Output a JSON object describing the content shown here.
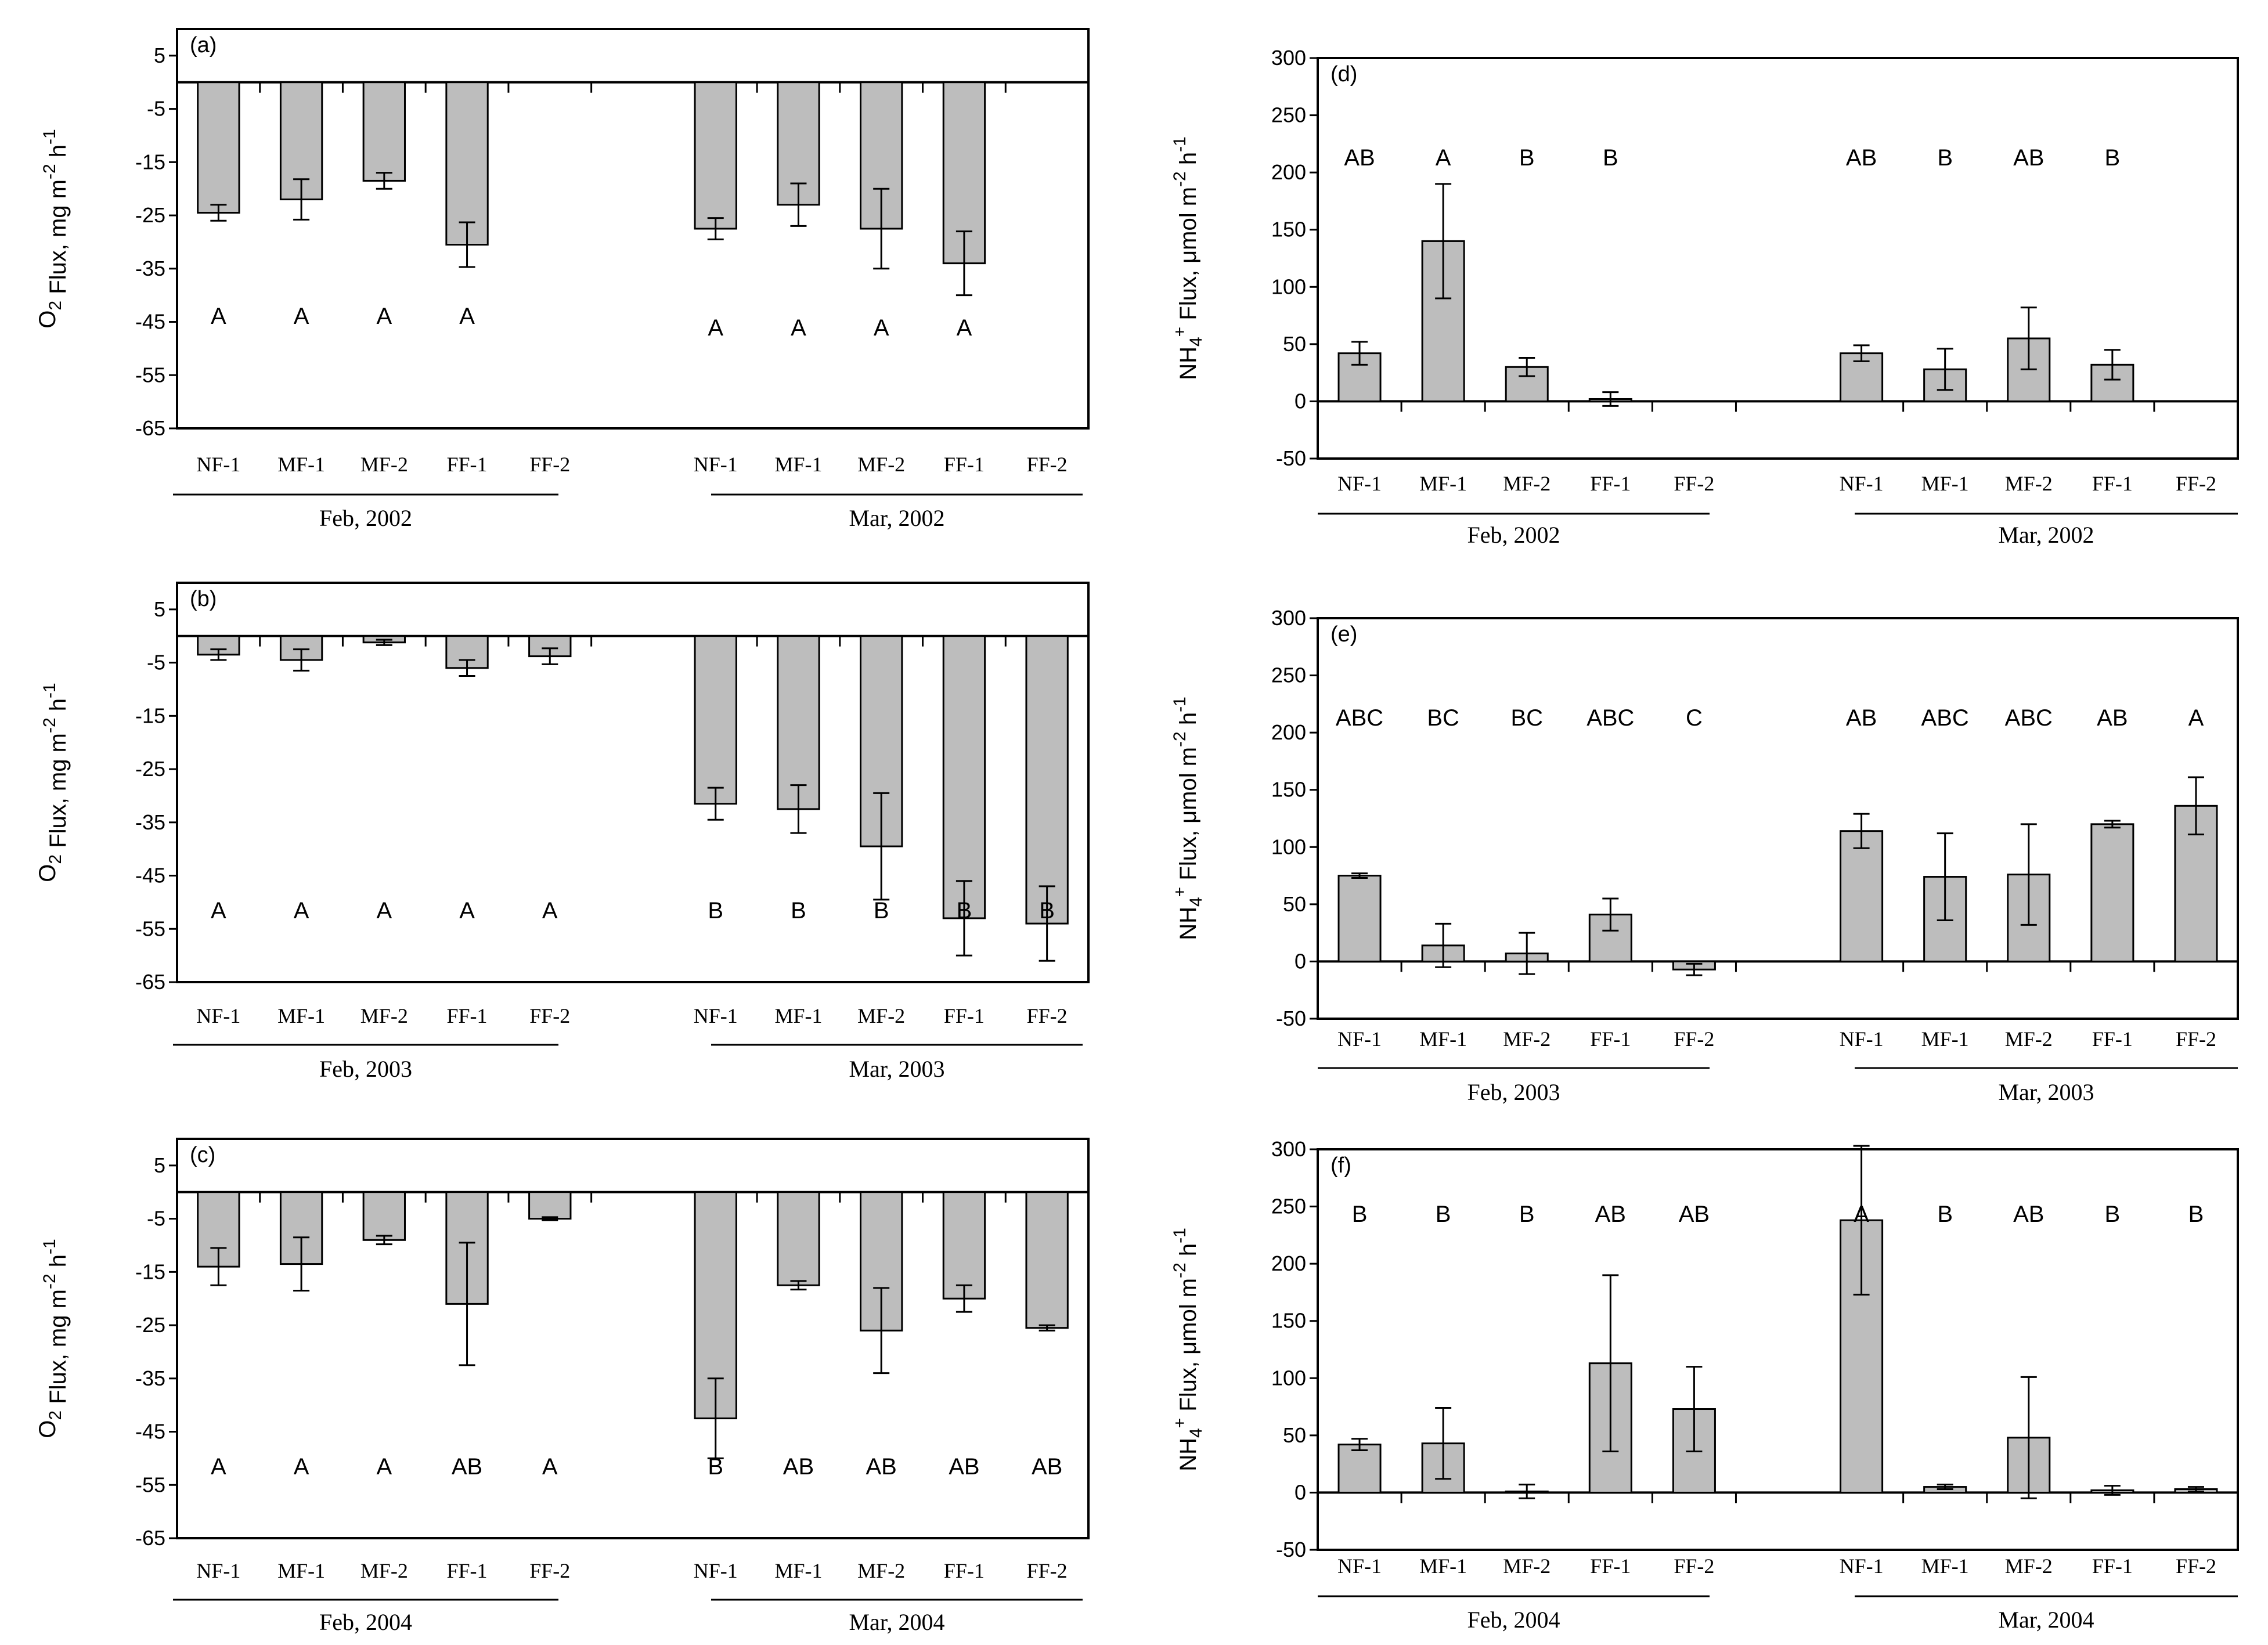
{
  "chart_data": [
    {
      "panel": "(a)",
      "type": "bar",
      "ylabel": {
        "base": "O",
        "sub": "2",
        "rest": " Flux, mg m",
        "sup1": "-2",
        "mid": " h",
        "sup2": "-1"
      },
      "ylim": [
        -65,
        10
      ],
      "yticks": [
        5,
        -5,
        -15,
        -25,
        -35,
        -45,
        -55,
        -65
      ],
      "groups": [
        {
          "label": "Feb, 2002",
          "categories": [
            "NF-1",
            "MF-1",
            "MF-2",
            "FF-1",
            "FF-2"
          ],
          "values": [
            -24.5,
            -22,
            -18.5,
            -30.5,
            null
          ],
          "errors": [
            1.5,
            3.8,
            1.5,
            4.2,
            null
          ],
          "letters": [
            "A",
            "A",
            "A",
            "A",
            ""
          ]
        },
        {
          "label": "Mar, 2002",
          "categories": [
            "NF-1",
            "MF-1",
            "MF-2",
            "FF-1",
            "FF-2"
          ],
          "values": [
            -27.5,
            -23,
            -27.5,
            -34,
            null
          ],
          "errors": [
            2,
            4,
            7.5,
            6,
            null
          ],
          "letters": [
            "A",
            "A",
            "A",
            "A",
            ""
          ]
        }
      ]
    },
    {
      "panel": "(b)",
      "type": "bar",
      "ylabel": {
        "base": "O",
        "sub": "2",
        "rest": " Flux, mg m",
        "sup1": "-2",
        "mid": " h",
        "sup2": "-1"
      },
      "ylim": [
        -65,
        10
      ],
      "yticks": [
        5,
        -5,
        -15,
        -25,
        -35,
        -45,
        -55,
        -65
      ],
      "groups": [
        {
          "label": "Feb, 2003",
          "categories": [
            "NF-1",
            "MF-1",
            "MF-2",
            "FF-1",
            "FF-2"
          ],
          "values": [
            -3.5,
            -4.5,
            -1.2,
            -6,
            -3.8
          ],
          "errors": [
            1,
            2,
            0.5,
            1.5,
            1.5
          ],
          "letters": [
            "A",
            "A",
            "A",
            "A",
            "A"
          ]
        },
        {
          "label": "Mar, 2003",
          "categories": [
            "NF-1",
            "MF-1",
            "MF-2",
            "FF-1",
            "FF-2"
          ],
          "values": [
            -31.5,
            -32.5,
            -39.5,
            -53,
            -54
          ],
          "errors": [
            3,
            4.5,
            10,
            7,
            7
          ],
          "letters": [
            "B",
            "B",
            "B",
            "B",
            "B"
          ]
        }
      ]
    },
    {
      "panel": "(c)",
      "type": "bar",
      "ylabel": {
        "base": "O",
        "sub": "2",
        "rest": " Flux, mg m",
        "sup1": "-2",
        "mid": " h",
        "sup2": "-1"
      },
      "ylim": [
        -65,
        10
      ],
      "yticks": [
        5,
        -5,
        -15,
        -25,
        -35,
        -45,
        -55,
        -65
      ],
      "groups": [
        {
          "label": "Feb, 2004",
          "categories": [
            "NF-1",
            "MF-1",
            "MF-2",
            "FF-1",
            "FF-2"
          ],
          "values": [
            -14,
            -13.5,
            -9,
            -21,
            -5
          ],
          "errors": [
            3.5,
            5,
            0.8,
            11.5,
            0.3
          ],
          "letters": [
            "A",
            "A",
            "A",
            "AB",
            "A"
          ]
        },
        {
          "label": "Mar, 2004",
          "categories": [
            "NF-1",
            "MF-1",
            "MF-2",
            "FF-1",
            "FF-2"
          ],
          "values": [
            -42.5,
            -17.5,
            -26,
            -20,
            -25.5
          ],
          "errors": [
            7.5,
            0.8,
            8,
            2.5,
            0.5
          ],
          "letters": [
            "B",
            "AB",
            "AB",
            "AB",
            "AB"
          ]
        }
      ]
    },
    {
      "panel": "(d)",
      "type": "bar",
      "ylabel": {
        "base": "NH",
        "sub": "4",
        "sup0": "+",
        "rest": " Flux, μmol m",
        "sup1": "-2",
        "mid": " h",
        "sup2": "-1"
      },
      "ylim": [
        -50,
        300
      ],
      "yticks": [
        300,
        250,
        200,
        150,
        100,
        50,
        0,
        -50
      ],
      "groups": [
        {
          "label": "Feb, 2002",
          "categories": [
            "NF-1",
            "MF-1",
            "MF-2",
            "FF-1",
            "FF-2"
          ],
          "values": [
            42,
            140,
            30,
            2,
            null
          ],
          "errors": [
            10,
            50,
            8,
            6,
            null
          ],
          "letters": [
            "AB",
            "A",
            "B",
            "B",
            ""
          ]
        },
        {
          "label": "Mar, 2002",
          "categories": [
            "NF-1",
            "MF-1",
            "MF-2",
            "FF-1",
            "FF-2"
          ],
          "values": [
            42,
            28,
            55,
            32,
            null
          ],
          "errors": [
            7,
            18,
            27,
            13,
            null
          ],
          "letters": [
            "AB",
            "B",
            "AB",
            "B",
            ""
          ]
        }
      ]
    },
    {
      "panel": "(e)",
      "type": "bar",
      "ylabel": {
        "base": "NH",
        "sub": "4",
        "sup0": "+",
        "rest": " Flux, μmol m",
        "sup1": "-2",
        "mid": " h",
        "sup2": "-1"
      },
      "ylim": [
        -50,
        300
      ],
      "yticks": [
        300,
        250,
        200,
        150,
        100,
        50,
        0,
        -50
      ],
      "groups": [
        {
          "label": "Feb, 2003",
          "categories": [
            "NF-1",
            "MF-1",
            "MF-2",
            "FF-1",
            "FF-2"
          ],
          "values": [
            75,
            14,
            7,
            41,
            -7
          ],
          "errors": [
            2,
            19,
            18,
            14,
            5
          ],
          "letters": [
            "ABC",
            "BC",
            "BC",
            "ABC",
            "C"
          ]
        },
        {
          "label": "Mar, 2003",
          "categories": [
            "NF-1",
            "MF-1",
            "MF-2",
            "FF-1",
            "FF-2"
          ],
          "values": [
            114,
            74,
            76,
            120,
            136
          ],
          "errors": [
            15,
            38,
            44,
            3,
            25
          ],
          "letters": [
            "AB",
            "ABC",
            "ABC",
            "AB",
            "A"
          ]
        }
      ]
    },
    {
      "panel": "(f)",
      "type": "bar",
      "ylabel": {
        "base": "NH",
        "sub": "4",
        "sup0": "+",
        "rest": " Flux, μmol m",
        "sup1": "-2",
        "mid": " h",
        "sup2": "-1"
      },
      "ylim": [
        -50,
        300
      ],
      "yticks": [
        300,
        250,
        200,
        150,
        100,
        50,
        0,
        -50
      ],
      "groups": [
        {
          "label": "Feb, 2004",
          "categories": [
            "NF-1",
            "MF-1",
            "MF-2",
            "FF-1",
            "FF-2"
          ],
          "values": [
            42,
            43,
            1,
            113,
            73
          ],
          "errors": [
            5,
            31,
            6,
            77,
            37
          ],
          "letters": [
            "B",
            "B",
            "B",
            "AB",
            "AB"
          ]
        },
        {
          "label": "Mar, 2004",
          "categories": [
            "NF-1",
            "MF-1",
            "MF-2",
            "FF-1",
            "FF-2"
          ],
          "values": [
            238,
            5,
            48,
            2,
            3
          ],
          "errors": [
            65,
            2,
            53,
            4,
            2
          ],
          "letters": [
            "A",
            "B",
            "AB",
            "B",
            "B"
          ]
        }
      ]
    }
  ],
  "colors": {
    "bar_fill": "#bdbdbd",
    "stroke": "#000000",
    "background": "#ffffff"
  }
}
